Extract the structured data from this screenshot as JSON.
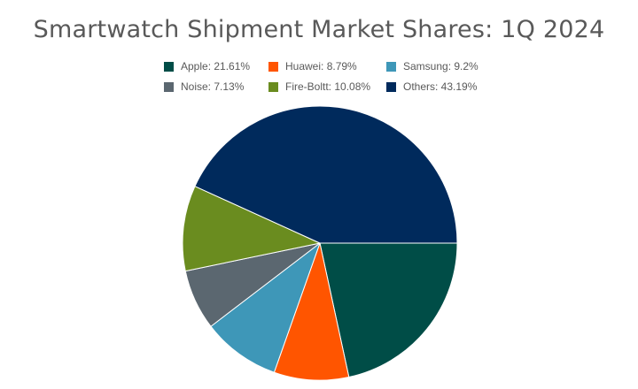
{
  "chart_data": {
    "type": "pie",
    "title": "Smartwatch Shipment Market Shares: 1Q 2024",
    "legend_position": "top",
    "slices": [
      {
        "label": "Apple",
        "value": 21.61,
        "legend": "Apple: 21.61%",
        "color": "#004d47"
      },
      {
        "label": "Huawei",
        "value": 8.79,
        "legend": "Huawei: 8.79%",
        "color": "#ff5500"
      },
      {
        "label": "Samsung",
        "value": 9.2,
        "legend": "Samsung: 9.2%",
        "color": "#3e97b8"
      },
      {
        "label": "Noise",
        "value": 7.13,
        "legend": "Noise: 7.13%",
        "color": "#5b6770"
      },
      {
        "label": "Fire-Boltt",
        "value": 10.08,
        "legend": "Fire-Boltt: 10.08%",
        "color": "#6a8c1f"
      },
      {
        "label": "Others",
        "value": 43.19,
        "legend": "Others: 43.19%",
        "color": "#002a5c"
      }
    ]
  }
}
